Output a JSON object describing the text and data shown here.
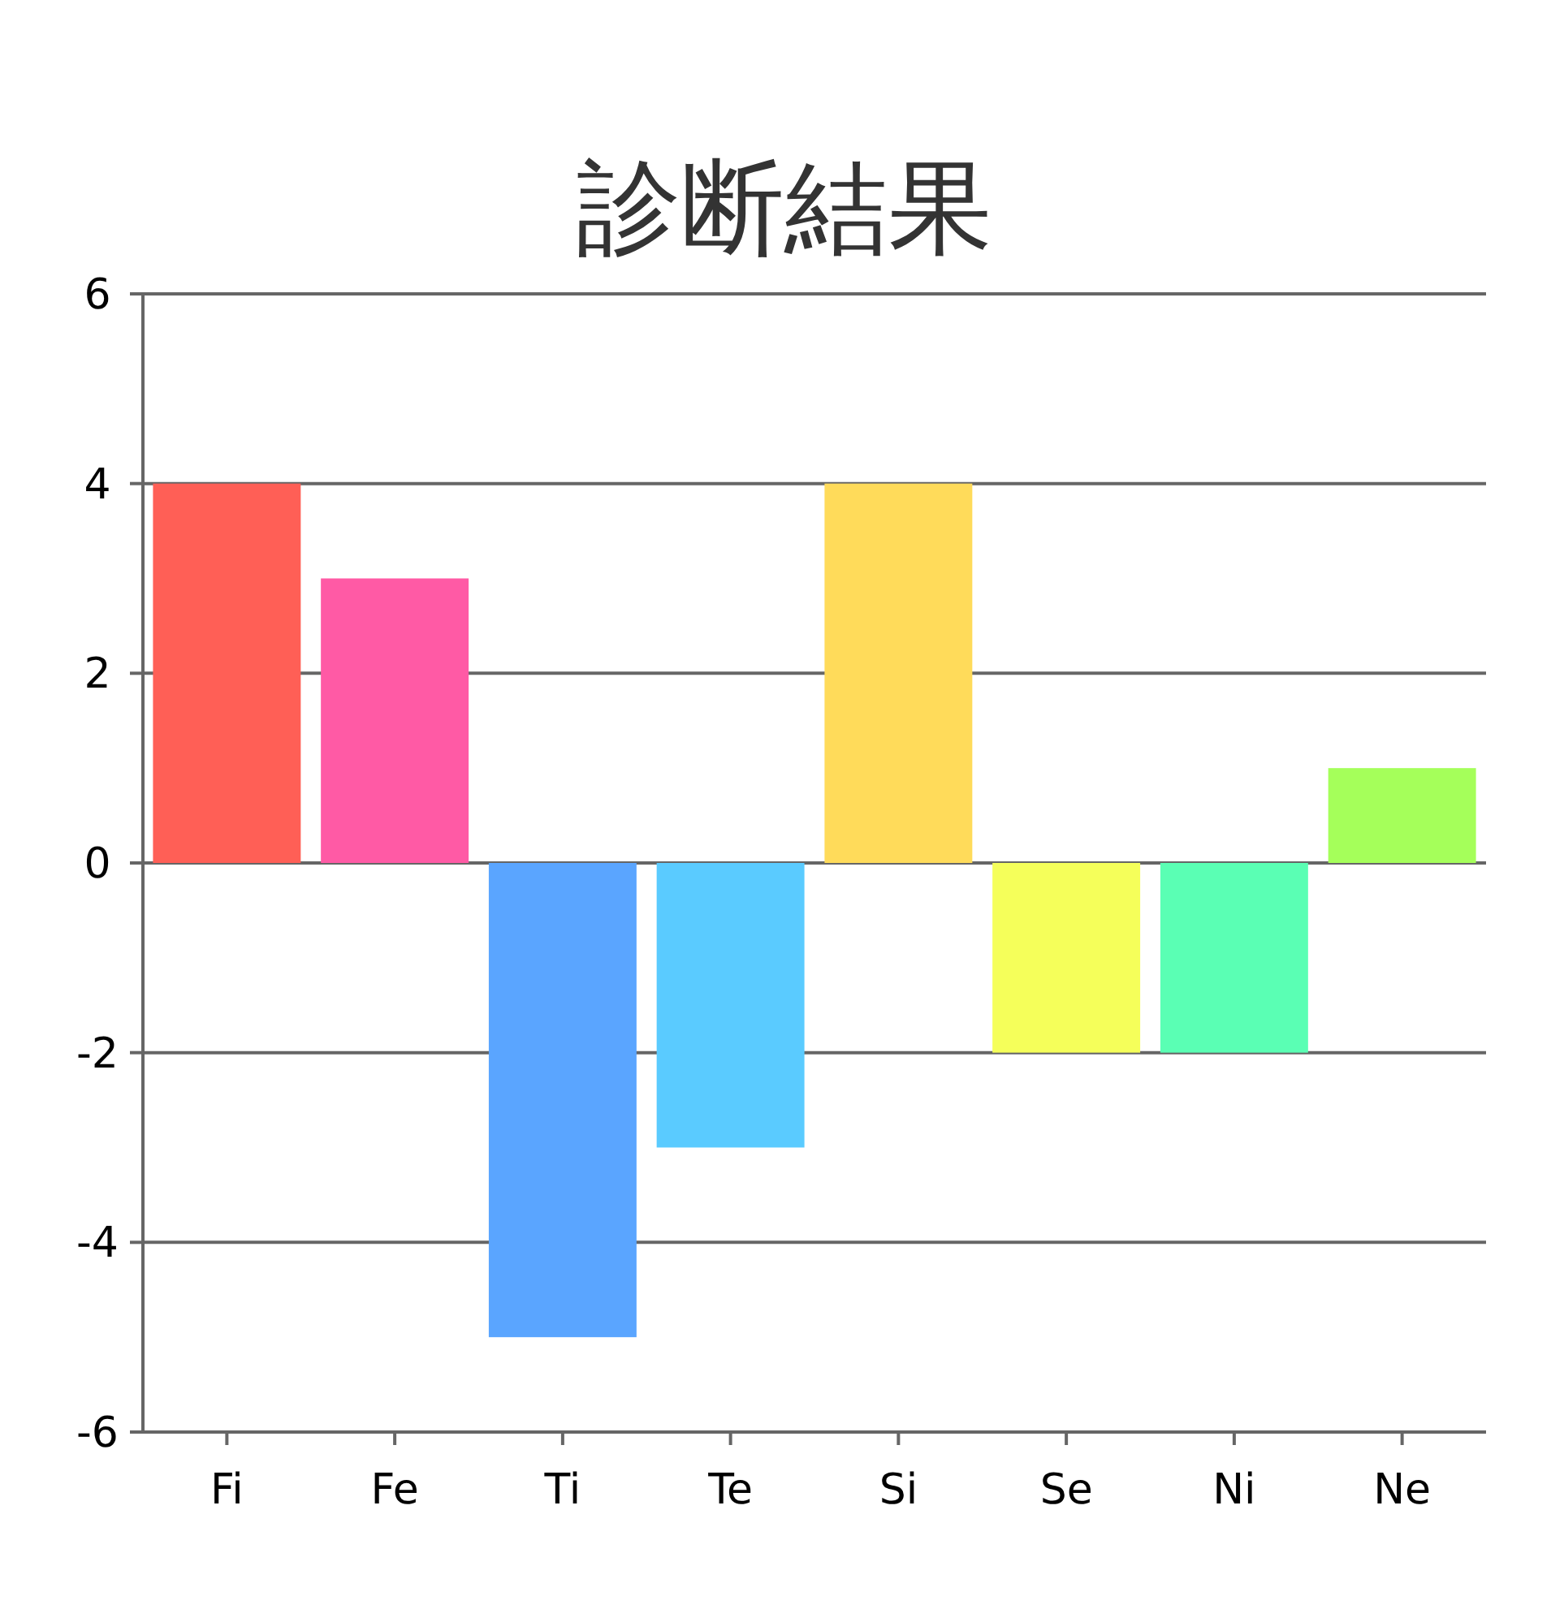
{
  "chart_data": {
    "type": "bar",
    "title": "診断結果",
    "categories": [
      "Fi",
      "Fe",
      "Ti",
      "Te",
      "Si",
      "Se",
      "Ni",
      "Ne"
    ],
    "values": [
      4,
      3,
      -5,
      -3,
      4,
      -2,
      -2,
      1
    ],
    "colors": [
      "#ff5f56",
      "#ff5aa5",
      "#5aa5ff",
      "#5acbff",
      "#ffdb5a",
      "#f5ff5a",
      "#5affb4",
      "#a5ff5a"
    ],
    "ylim": [
      -6,
      6
    ],
    "yticks": [
      -6,
      -4,
      -2,
      0,
      2,
      4,
      6
    ],
    "grid": "y"
  }
}
